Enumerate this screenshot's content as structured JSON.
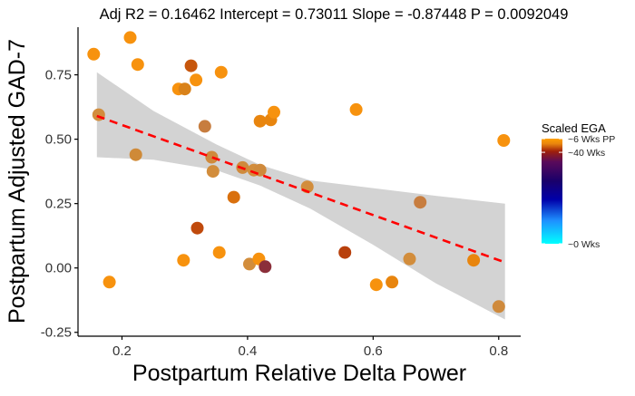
{
  "chart_data": {
    "type": "scatter",
    "title": "Adj R2 =  0.16462 Intercept = 0.73011  Slope = -0.87448  P = 0.0092049",
    "xlabel": "Postpartum Relative Delta Power",
    "ylabel": "Postpartum Adjusted GAD-7",
    "xlim": [
      0.13,
      0.835
    ],
    "ylim": [
      -0.265,
      0.935
    ],
    "x_ticks": [
      {
        "value": 0.2,
        "label": "0.2"
      },
      {
        "value": 0.4,
        "label": "0.4"
      },
      {
        "value": 0.6,
        "label": "0.6"
      },
      {
        "value": 0.8,
        "label": "0.8"
      }
    ],
    "y_ticks": [
      {
        "value": -0.25,
        "label": "-0.25"
      },
      {
        "value": 0.0,
        "label": "0.00"
      },
      {
        "value": 0.25,
        "label": "0.25"
      },
      {
        "value": 0.5,
        "label": "0.50"
      },
      {
        "value": 0.75,
        "label": "0.75"
      }
    ],
    "grid": false,
    "regression": {
      "intercept": 0.73011,
      "slope": -0.87448,
      "x_range": [
        0.16,
        0.81
      ],
      "line_color": "#ff0000",
      "ribbon_color": "#d3d3d3",
      "ribbon": [
        {
          "x": 0.16,
          "lo": 0.43,
          "hi": 0.76
        },
        {
          "x": 0.25,
          "lo": 0.42,
          "hi": 0.61
        },
        {
          "x": 0.35,
          "lo": 0.38,
          "hi": 0.48
        },
        {
          "x": 0.42,
          "lo": 0.32,
          "hi": 0.4
        },
        {
          "x": 0.5,
          "lo": 0.23,
          "hi": 0.34
        },
        {
          "x": 0.6,
          "lo": 0.09,
          "hi": 0.31
        },
        {
          "x": 0.7,
          "lo": -0.06,
          "hi": 0.28
        },
        {
          "x": 0.81,
          "lo": -0.2,
          "hi": 0.25
        }
      ]
    },
    "points": [
      {
        "x": 0.155,
        "y": 0.83,
        "color": "#f7920e"
      },
      {
        "x": 0.163,
        "y": 0.595,
        "color": "#d28d3c"
      },
      {
        "x": 0.18,
        "y": -0.055,
        "color": "#f7920e"
      },
      {
        "x": 0.213,
        "y": 0.895,
        "color": "#f7920e"
      },
      {
        "x": 0.222,
        "y": 0.44,
        "color": "#cf8a38"
      },
      {
        "x": 0.225,
        "y": 0.79,
        "color": "#f7920e"
      },
      {
        "x": 0.29,
        "y": 0.695,
        "color": "#f7920e"
      },
      {
        "x": 0.298,
        "y": 0.03,
        "color": "#f7920e"
      },
      {
        "x": 0.3,
        "y": 0.695,
        "color": "#d9821a"
      },
      {
        "x": 0.31,
        "y": 0.785,
        "color": "#c7560c"
      },
      {
        "x": 0.318,
        "y": 0.73,
        "color": "#f7920e"
      },
      {
        "x": 0.32,
        "y": 0.155,
        "color": "#c04a0c"
      },
      {
        "x": 0.332,
        "y": 0.55,
        "color": "#c77d3f"
      },
      {
        "x": 0.343,
        "y": 0.43,
        "color": "#cf8a3c"
      },
      {
        "x": 0.345,
        "y": 0.375,
        "color": "#d28d3c"
      },
      {
        "x": 0.355,
        "y": 0.06,
        "color": "#f7920e"
      },
      {
        "x": 0.358,
        "y": 0.76,
        "color": "#f7920e"
      },
      {
        "x": 0.378,
        "y": 0.275,
        "color": "#d9700e"
      },
      {
        "x": 0.392,
        "y": 0.39,
        "color": "#cf8a3c"
      },
      {
        "x": 0.403,
        "y": 0.015,
        "color": "#d28d3c"
      },
      {
        "x": 0.41,
        "y": 0.38,
        "color": "#d28d3c"
      },
      {
        "x": 0.418,
        "y": 0.035,
        "color": "#f7920e"
      },
      {
        "x": 0.42,
        "y": 0.57,
        "color": "#e8850e"
      },
      {
        "x": 0.42,
        "y": 0.38,
        "color": "#cf8a3c"
      },
      {
        "x": 0.428,
        "y": 0.005,
        "color": "#8b2f3a"
      },
      {
        "x": 0.437,
        "y": 0.575,
        "color": "#e8850e"
      },
      {
        "x": 0.442,
        "y": 0.605,
        "color": "#f7920e"
      },
      {
        "x": 0.495,
        "y": 0.315,
        "color": "#d28d3c"
      },
      {
        "x": 0.555,
        "y": 0.06,
        "color": "#b8400c"
      },
      {
        "x": 0.573,
        "y": 0.615,
        "color": "#f7920e"
      },
      {
        "x": 0.605,
        "y": -0.065,
        "color": "#f7920e"
      },
      {
        "x": 0.63,
        "y": -0.055,
        "color": "#e8850e"
      },
      {
        "x": 0.658,
        "y": 0.035,
        "color": "#d28d3c"
      },
      {
        "x": 0.675,
        "y": 0.255,
        "color": "#c77d3f"
      },
      {
        "x": 0.76,
        "y": 0.03,
        "color": "#e8850e"
      },
      {
        "x": 0.8,
        "y": -0.15,
        "color": "#cf8a3c"
      },
      {
        "x": 0.808,
        "y": 0.495,
        "color": "#f7920e"
      }
    ],
    "legend": {
      "title": "Scaled EGA",
      "placement": "right",
      "labels": [
        {
          "label": "~6 Wks PP",
          "position": 1.0
        },
        {
          "label": "~40 Wks",
          "position": 0.87
        },
        {
          "label": "~0 Wks",
          "position": 0.0
        }
      ],
      "gradient": [
        {
          "stop": 0.0,
          "color": "#00ffff"
        },
        {
          "stop": 0.22,
          "color": "#1e90ff"
        },
        {
          "stop": 0.42,
          "color": "#0000aa"
        },
        {
          "stop": 0.6,
          "color": "#1a006a"
        },
        {
          "stop": 0.78,
          "color": "#5a0a5a"
        },
        {
          "stop": 0.88,
          "color": "#a0200a"
        },
        {
          "stop": 0.95,
          "color": "#e8850e"
        },
        {
          "stop": 1.0,
          "color": "#ffa000"
        }
      ]
    }
  }
}
